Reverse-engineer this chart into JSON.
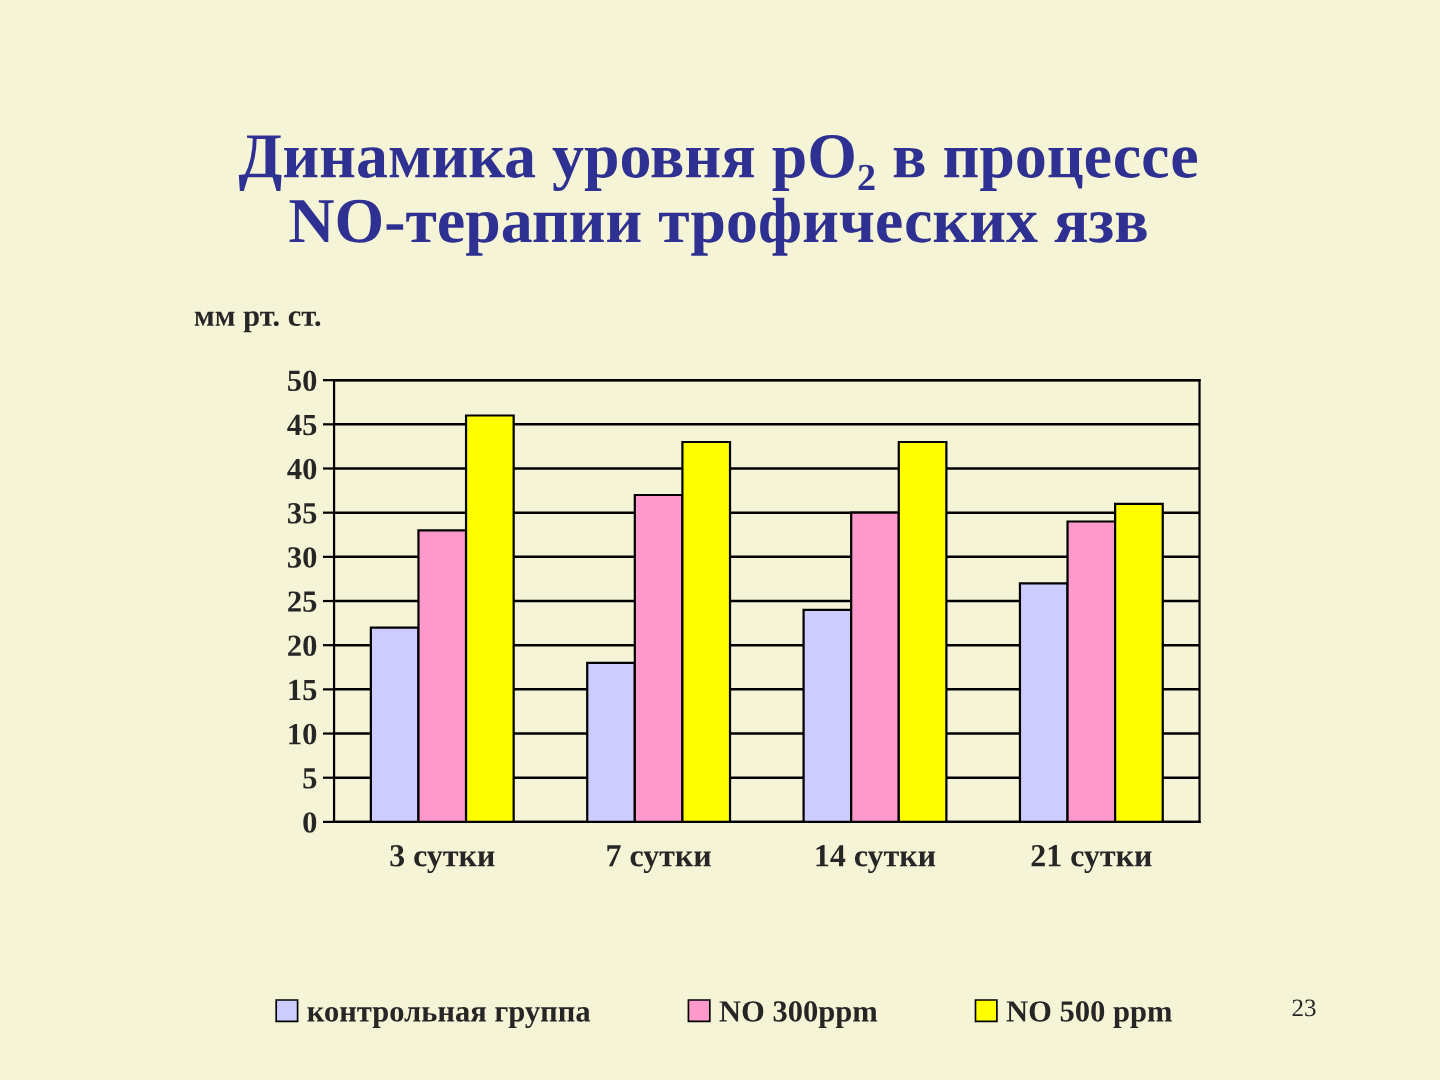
{
  "chart_data": {
    "type": "bar",
    "title": "Динамика уровня pO₂ в процессе\nNO-терапии трофических язв",
    "ylabel": "мм рт. ст.",
    "categories": [
      "3 сутки",
      "7 сутки",
      "14 сутки",
      "21 сутки"
    ],
    "series": [
      {
        "name": "контрольная группа",
        "color": "#ccccff",
        "values": [
          22,
          18,
          24,
          27
        ]
      },
      {
        "name": "NO 300ppm",
        "color": "#ff99cc",
        "values": [
          33,
          37,
          35,
          34
        ]
      },
      {
        "name": "NO 500 ppm",
        "color": "#ffff00",
        "values": [
          46,
          43,
          43,
          36
        ]
      }
    ],
    "ylim": [
      0,
      50
    ],
    "yticks": [
      0,
      5,
      10,
      15,
      20,
      25,
      30,
      35,
      40,
      45,
      50
    ],
    "grid": "y",
    "legend": "bottom",
    "annotations": [
      "23"
    ]
  }
}
